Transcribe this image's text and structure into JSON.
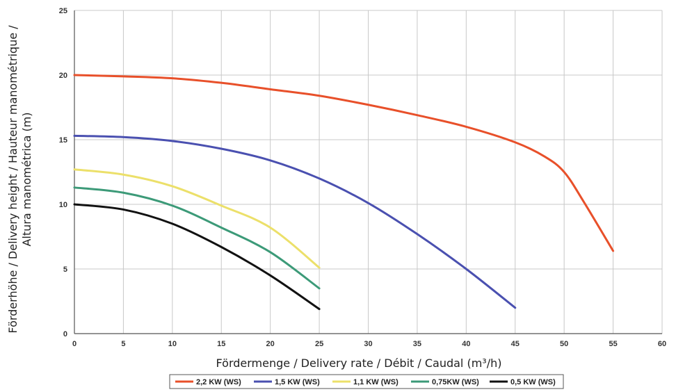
{
  "chart_data": {
    "type": "line",
    "xlabel": "Fördermenge / Delivery rate / Débit / Caudal (m³/h)",
    "ylabel_lines": [
      "Förderhöhe / Delivery height / Hauteur manométrique /",
      "Altura manométrica (m)"
    ],
    "xlim": [
      0,
      60
    ],
    "ylim": [
      0,
      25
    ],
    "xticks": [
      0,
      5,
      10,
      15,
      20,
      25,
      30,
      35,
      40,
      45,
      50,
      55,
      60
    ],
    "yticks": [
      0,
      5,
      10,
      15,
      20,
      25
    ],
    "grid": true,
    "legend_position": "bottom-center",
    "series": [
      {
        "name": "2,2 KW (WS)",
        "color": "#e8502a",
        "x": [
          0,
          5,
          10,
          15,
          20,
          25,
          30,
          35,
          40,
          45,
          48,
          50,
          52,
          55
        ],
        "y": [
          20.0,
          19.9,
          19.75,
          19.4,
          18.9,
          18.4,
          17.7,
          16.9,
          16.0,
          14.8,
          13.7,
          12.5,
          10.2,
          6.4
        ]
      },
      {
        "name": "1,5 KW (WS)",
        "color": "#4a50b0",
        "x": [
          0,
          5,
          10,
          15,
          20,
          25,
          30,
          35,
          40,
          45
        ],
        "y": [
          15.3,
          15.2,
          14.9,
          14.3,
          13.4,
          12.0,
          10.1,
          7.7,
          5.0,
          2.0
        ]
      },
      {
        "name": "1,1 KW (WS)",
        "color": "#ece06a",
        "x": [
          0,
          5,
          10,
          15,
          20,
          25
        ],
        "y": [
          12.7,
          12.3,
          11.4,
          9.9,
          8.2,
          5.1
        ]
      },
      {
        "name": "0,75KW (WS)",
        "color": "#3c9a78",
        "x": [
          0,
          5,
          10,
          15,
          20,
          25
        ],
        "y": [
          11.3,
          10.9,
          9.9,
          8.2,
          6.3,
          3.5
        ]
      },
      {
        "name": "0,5 KW (WS)",
        "color": "#111111",
        "x": [
          0,
          5,
          10,
          15,
          20,
          25
        ],
        "y": [
          10.0,
          9.6,
          8.5,
          6.7,
          4.5,
          1.9
        ]
      }
    ]
  }
}
